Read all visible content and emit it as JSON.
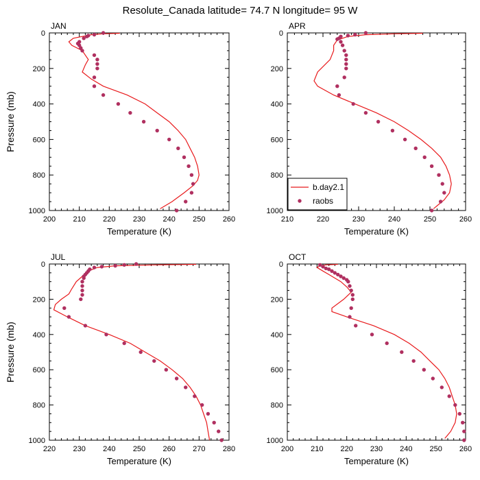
{
  "figure_title": "Resolute_Canada  latitude= 74.7 N longitude= 95 W",
  "colors": {
    "model": "#e8191b",
    "obs": "#b03060",
    "axis": "#000000"
  },
  "legend": {
    "model_label": "b.day2.1",
    "obs_label": "raobs",
    "placement": "panel APR, lower-left"
  },
  "chart_data": [
    {
      "type": "scatter",
      "title": "JAN",
      "xlabel": "Temperature (K)",
      "ylabel": "Pressure (mb)",
      "xlim": [
        200,
        260
      ],
      "ylim": [
        1000,
        0
      ],
      "xticks": [
        200,
        210,
        220,
        230,
        240,
        250,
        260
      ],
      "yticks": [
        0,
        200,
        400,
        600,
        800,
        1000
      ],
      "series": [
        {
          "name": "b.day2.1",
          "kind": "line",
          "points": [
            [
              223.5,
              2
            ],
            [
              218,
              5
            ],
            [
              214,
              10
            ],
            [
              211,
              20
            ],
            [
              208,
              30
            ],
            [
              206.5,
              50
            ],
            [
              207.5,
              70
            ],
            [
              211,
              100
            ],
            [
              213,
              150
            ],
            [
              212,
              180
            ],
            [
              211,
              220
            ],
            [
              214,
              260
            ],
            [
              218,
              300
            ],
            [
              226,
              350
            ],
            [
              232,
              400
            ],
            [
              236,
              450
            ],
            [
              240,
              500
            ],
            [
              243,
              550
            ],
            [
              245.5,
              600
            ],
            [
              247,
              650
            ],
            [
              248.5,
              700
            ],
            [
              249.5,
              750
            ],
            [
              250,
              800
            ],
            [
              249.5,
              830
            ],
            [
              248,
              860
            ],
            [
              245,
              900
            ],
            [
              241,
              950
            ],
            [
              237,
              990
            ]
          ]
        },
        {
          "name": "raobs",
          "kind": "scatter",
          "points": [
            [
              218,
              0
            ],
            [
              215,
              10
            ],
            [
              213,
              15
            ],
            [
              212.5,
              20
            ],
            [
              211.5,
              30
            ],
            [
              210,
              50
            ],
            [
              209.5,
              60
            ],
            [
              210,
              70
            ],
            [
              210.5,
              85
            ],
            [
              211,
              100
            ],
            [
              215,
              125
            ],
            [
              216,
              150
            ],
            [
              216,
              175
            ],
            [
              216,
              200
            ],
            [
              215,
              250
            ],
            [
              215,
              300
            ],
            [
              218,
              350
            ],
            [
              223,
              400
            ],
            [
              227,
              450
            ],
            [
              231.5,
              500
            ],
            [
              236,
              550
            ],
            [
              240,
              600
            ],
            [
              243,
              650
            ],
            [
              245,
              700
            ],
            [
              246.5,
              750
            ],
            [
              247.5,
              800
            ],
            [
              248,
              850
            ],
            [
              247.5,
              900
            ],
            [
              245.5,
              950
            ],
            [
              242.5,
              1000
            ]
          ]
        }
      ]
    },
    {
      "type": "scatter",
      "title": "APR",
      "xlabel": "Temperature (K)",
      "ylabel": "",
      "xlim": [
        210,
        260
      ],
      "ylim": [
        1000,
        0
      ],
      "xticks": [
        210,
        220,
        230,
        240,
        250,
        260
      ],
      "yticks": [
        0,
        200,
        400,
        600,
        800,
        1000
      ],
      "series": [
        {
          "name": "b.day2.1",
          "kind": "line",
          "points": [
            [
              248,
              2
            ],
            [
              240,
              5
            ],
            [
              232,
              10
            ],
            [
              227,
              20
            ],
            [
              224,
              40
            ],
            [
              223,
              70
            ],
            [
              223,
              100
            ],
            [
              222,
              150
            ],
            [
              218.5,
              220
            ],
            [
              217.5,
              270
            ],
            [
              218.5,
              300
            ],
            [
              223,
              350
            ],
            [
              229,
              400
            ],
            [
              235,
              450
            ],
            [
              240,
              500
            ],
            [
              244,
              550
            ],
            [
              247.5,
              600
            ],
            [
              250.5,
              650
            ],
            [
              253,
              700
            ],
            [
              254.5,
              750
            ],
            [
              255.5,
              800
            ],
            [
              256,
              850
            ],
            [
              255.5,
              900
            ],
            [
              254,
              940
            ],
            [
              251,
              990
            ]
          ]
        },
        {
          "name": "raobs",
          "kind": "scatter",
          "points": [
            [
              232,
              0
            ],
            [
              229,
              10
            ],
            [
              227,
              15
            ],
            [
              225,
              20
            ],
            [
              224.5,
              30
            ],
            [
              224,
              35
            ],
            [
              225,
              50
            ],
            [
              225.5,
              70
            ],
            [
              226,
              100
            ],
            [
              226.5,
              125
            ],
            [
              226.5,
              150
            ],
            [
              226.5,
              175
            ],
            [
              226.5,
              200
            ],
            [
              226,
              250
            ],
            [
              224,
              300
            ],
            [
              224.5,
              350
            ],
            [
              228.5,
              400
            ],
            [
              232,
              450
            ],
            [
              235.5,
              500
            ],
            [
              239.5,
              550
            ],
            [
              243,
              600
            ],
            [
              246,
              650
            ],
            [
              248.5,
              700
            ],
            [
              250.5,
              750
            ],
            [
              252.5,
              800
            ],
            [
              253.5,
              850
            ],
            [
              254,
              900
            ],
            [
              253,
              950
            ],
            [
              250.5,
              1000
            ]
          ]
        }
      ]
    },
    {
      "type": "scatter",
      "title": "JUL",
      "xlabel": "Temperature (K)",
      "ylabel": "Pressure (mb)",
      "xlim": [
        220,
        280
      ],
      "ylim": [
        1000,
        0
      ],
      "xticks": [
        220,
        230,
        240,
        250,
        260,
        270,
        280
      ],
      "yticks": [
        0,
        200,
        400,
        600,
        800,
        1000
      ],
      "series": [
        {
          "name": "b.day2.1",
          "kind": "line",
          "points": [
            [
              269,
              2
            ],
            [
              255,
              5
            ],
            [
              242,
              10
            ],
            [
              236,
              20
            ],
            [
              233,
              40
            ],
            [
              231,
              70
            ],
            [
              229,
              100
            ],
            [
              227.5,
              140
            ],
            [
              226.5,
              170
            ],
            [
              224,
              200
            ],
            [
              222,
              230
            ],
            [
              221.5,
              260
            ],
            [
              226,
              300
            ],
            [
              232,
              350
            ],
            [
              240,
              400
            ],
            [
              247,
              450
            ],
            [
              252,
              500
            ],
            [
              257,
              550
            ],
            [
              261,
              600
            ],
            [
              264.5,
              650
            ],
            [
              267,
              700
            ],
            [
              269,
              750
            ],
            [
              270.5,
              800
            ],
            [
              271.5,
              850
            ],
            [
              272.5,
              900
            ],
            [
              273,
              950
            ],
            [
              273.5,
              1000
            ]
          ]
        },
        {
          "name": "raobs",
          "kind": "scatter",
          "points": [
            [
              249,
              0
            ],
            [
              245,
              5
            ],
            [
              242,
              10
            ],
            [
              237.5,
              15
            ],
            [
              235,
              20
            ],
            [
              233.5,
              30
            ],
            [
              233,
              40
            ],
            [
              232.5,
              50
            ],
            [
              232,
              60
            ],
            [
              231.5,
              70
            ],
            [
              231.5,
              80
            ],
            [
              231,
              100
            ],
            [
              231,
              125
            ],
            [
              231,
              150
            ],
            [
              231,
              175
            ],
            [
              230.5,
              200
            ],
            [
              225,
              250
            ],
            [
              226.5,
              300
            ],
            [
              232,
              350
            ],
            [
              239,
              400
            ],
            [
              245,
              450
            ],
            [
              250.5,
              500
            ],
            [
              255,
              550
            ],
            [
              259,
              600
            ],
            [
              262.5,
              650
            ],
            [
              265.5,
              700
            ],
            [
              268.5,
              750
            ],
            [
              271,
              800
            ],
            [
              273,
              850
            ],
            [
              275,
              900
            ],
            [
              276.5,
              950
            ],
            [
              277.5,
              1000
            ]
          ]
        }
      ]
    },
    {
      "type": "scatter",
      "title": "OCT",
      "xlabel": "Temperature (K)",
      "ylabel": "",
      "xlim": [
        200,
        260
      ],
      "ylim": [
        1000,
        0
      ],
      "xticks": [
        200,
        210,
        220,
        230,
        240,
        250,
        260
      ],
      "yticks": [
        0,
        200,
        400,
        600,
        800,
        1000
      ],
      "series": [
        {
          "name": "b.day2.1",
          "kind": "line",
          "points": [
            [
              217,
              2
            ],
            [
              213,
              5
            ],
            [
              211,
              10
            ],
            [
              210,
              20
            ],
            [
              211,
              30
            ],
            [
              212,
              40
            ],
            [
              214,
              60
            ],
            [
              218,
              100
            ],
            [
              220,
              130
            ],
            [
              221.5,
              160
            ],
            [
              219,
              200
            ],
            [
              215,
              250
            ],
            [
              215,
              270
            ],
            [
              220,
              300
            ],
            [
              229,
              350
            ],
            [
              236,
              400
            ],
            [
              241,
              450
            ],
            [
              245,
              500
            ],
            [
              248,
              550
            ],
            [
              251,
              600
            ],
            [
              253,
              650
            ],
            [
              254.5,
              700
            ],
            [
              255.5,
              750
            ],
            [
              256.5,
              800
            ],
            [
              257,
              850
            ],
            [
              256.5,
              900
            ],
            [
              255,
              950
            ],
            [
              253,
              990
            ]
          ]
        },
        {
          "name": "raobs",
          "kind": "scatter",
          "points": [
            [
              211,
              5
            ],
            [
              212,
              15
            ],
            [
              213,
              25
            ],
            [
              214,
              30
            ],
            [
              215,
              40
            ],
            [
              216,
              50
            ],
            [
              217,
              60
            ],
            [
              218,
              70
            ],
            [
              219,
              80
            ],
            [
              220,
              90
            ],
            [
              220.5,
              100
            ],
            [
              221,
              125
            ],
            [
              221.5,
              150
            ],
            [
              222,
              175
            ],
            [
              222,
              200
            ],
            [
              221.5,
              250
            ],
            [
              221,
              300
            ],
            [
              223,
              350
            ],
            [
              228.5,
              400
            ],
            [
              233.5,
              450
            ],
            [
              238.5,
              500
            ],
            [
              242.5,
              550
            ],
            [
              246,
              600
            ],
            [
              249,
              650
            ],
            [
              252,
              700
            ],
            [
              254.5,
              750
            ],
            [
              256.5,
              800
            ],
            [
              258,
              850
            ],
            [
              259,
              900
            ],
            [
              259.5,
              950
            ],
            [
              259.5,
              1000
            ]
          ]
        }
      ]
    }
  ]
}
